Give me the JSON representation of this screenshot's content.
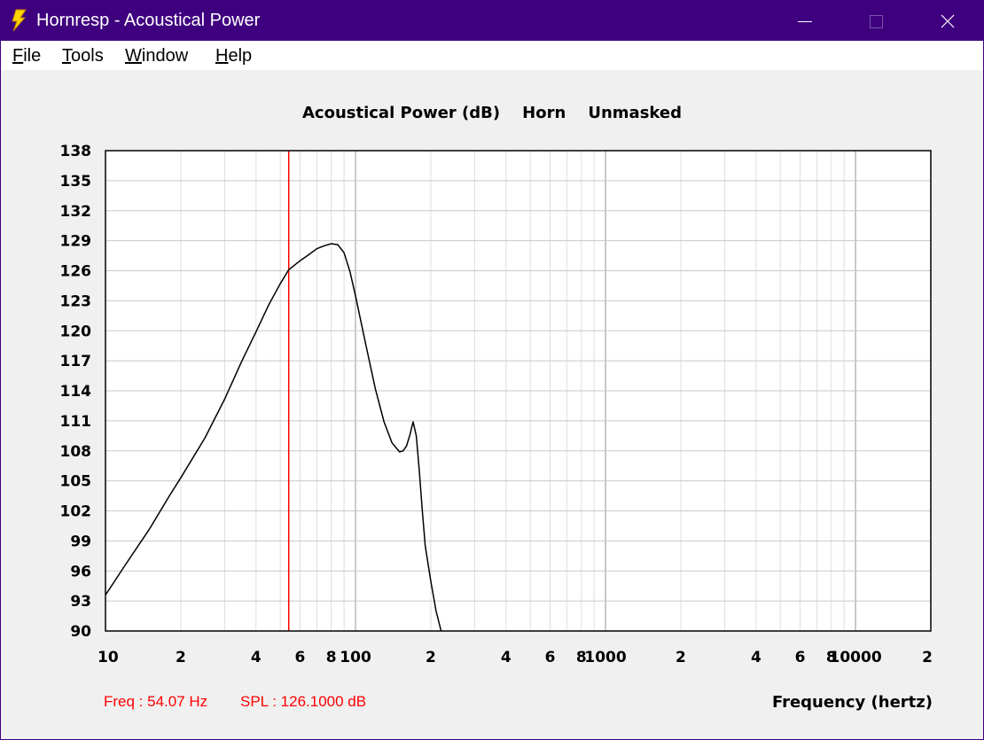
{
  "window": {
    "title": "Hornresp - Acoustical Power",
    "app_icon": "lightning-bolt-icon",
    "controls": {
      "minimize": "minimize-icon",
      "maximize": "maximize-icon",
      "close": "close-icon"
    },
    "titlebar_color": "#3f0080"
  },
  "menu": {
    "items": [
      {
        "label": "File",
        "mnemonic": "F",
        "rest": "ile"
      },
      {
        "label": "Tools",
        "mnemonic": "T",
        "rest": "ools"
      },
      {
        "label": "Window",
        "mnemonic": "W",
        "rest": "indow"
      },
      {
        "label": "Help",
        "mnemonic": "H",
        "rest": "elp"
      }
    ]
  },
  "readout": {
    "freq": "Freq : 54.07 Hz",
    "spl": "SPL : 126.1000 dB",
    "color": "#ff0000"
  },
  "chart_data": {
    "type": "line",
    "title": "Acoustical Power (dB)    Horn    Unmasked",
    "xlabel": "Frequency (hertz)",
    "ylabel": "",
    "xscale": "log",
    "xlim": [
      10,
      20000
    ],
    "ylim": [
      90,
      138
    ],
    "y_ticks": [
      "138",
      "135",
      "132",
      "129",
      "126",
      "123",
      "120",
      "117",
      "114",
      "111",
      "108",
      "105",
      "102",
      "99",
      "96",
      "93",
      "90"
    ],
    "x_tick_labels": [
      {
        "v": 10,
        "t": "10"
      },
      {
        "v": 20,
        "t": "2"
      },
      {
        "v": 40,
        "t": "4"
      },
      {
        "v": 60,
        "t": "6"
      },
      {
        "v": 80,
        "t": "8"
      },
      {
        "v": 100,
        "t": "100"
      },
      {
        "v": 200,
        "t": "2"
      },
      {
        "v": 400,
        "t": "4"
      },
      {
        "v": 600,
        "t": "6"
      },
      {
        "v": 800,
        "t": "8"
      },
      {
        "v": 1000,
        "t": "1000"
      },
      {
        "v": 2000,
        "t": "2"
      },
      {
        "v": 4000,
        "t": "4"
      },
      {
        "v": 6000,
        "t": "6"
      },
      {
        "v": 8000,
        "t": "8"
      },
      {
        "v": 10000,
        "t": "10000"
      },
      {
        "v": 20000,
        "t": "2"
      }
    ],
    "grid": true,
    "cursor": {
      "x": 54.07,
      "color": "#ff0000"
    },
    "series": [
      {
        "color": "#000000",
        "x": [
          10,
          12,
          15,
          18,
          20,
          25,
          30,
          35,
          40,
          45,
          50,
          54.07,
          60,
          65,
          70,
          75,
          80,
          85,
          90,
          95,
          100,
          110,
          120,
          130,
          140,
          150,
          155,
          160,
          165,
          168,
          170,
          175,
          180,
          185,
          190,
          200,
          210,
          220
        ],
        "y": [
          93.6,
          96.6,
          100.2,
          103.5,
          105.3,
          109.3,
          113.2,
          116.9,
          119.9,
          122.6,
          124.7,
          126.1,
          127.0,
          127.6,
          128.2,
          128.5,
          128.7,
          128.6,
          127.8,
          125.9,
          123.5,
          118.6,
          114.2,
          110.9,
          108.8,
          107.9,
          108.0,
          108.5,
          109.6,
          110.4,
          110.9,
          109.5,
          106.0,
          102.0,
          98.5,
          95.0,
          92.0,
          90.0
        ]
      }
    ]
  }
}
